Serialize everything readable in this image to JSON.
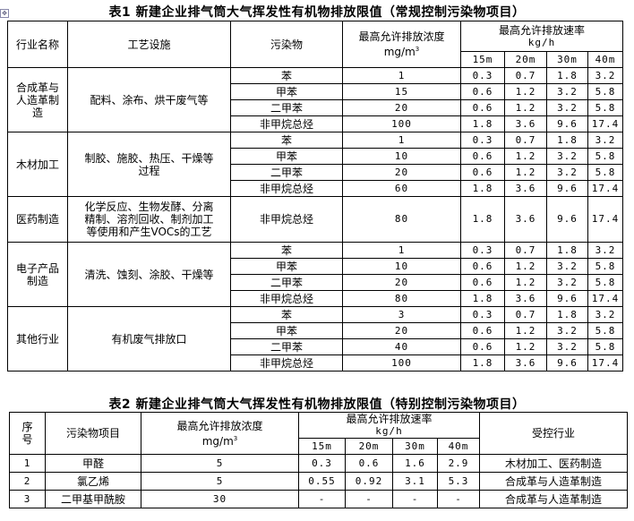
{
  "table1": {
    "title": "表1 新建企业排气筒大气挥发性有机物排放限值（常规控制污染物项目）",
    "headers": {
      "industry": "行业名称",
      "process": "工艺设施",
      "pollutant": "污染物",
      "conc": "最高允许排放浓度",
      "conc_unit": "mg/m",
      "conc_sup": "3",
      "rate": "最高允许排放速率",
      "rate_unit": "kg/h",
      "heights": [
        "15m",
        "20m",
        "30m",
        "40m"
      ]
    },
    "groups": [
      {
        "industry": "合成革与人造革制造",
        "process": "配料、涂布、烘干废气等",
        "rows": [
          {
            "pollutant": "苯",
            "conc": "1",
            "rates": [
              "0.3",
              "0.7",
              "1.8",
              "3.2"
            ]
          },
          {
            "pollutant": "甲苯",
            "conc": "15",
            "rates": [
              "0.6",
              "1.2",
              "3.2",
              "5.8"
            ]
          },
          {
            "pollutant": "二甲苯",
            "conc": "20",
            "rates": [
              "0.6",
              "1.2",
              "3.2",
              "5.8"
            ]
          },
          {
            "pollutant": "非甲烷总烃",
            "conc": "100",
            "rates": [
              "1.8",
              "3.6",
              "9.6",
              "17.4"
            ]
          }
        ]
      },
      {
        "industry": "木材加工",
        "process": "制胶、施胶、热压、干燥等过程",
        "rows": [
          {
            "pollutant": "苯",
            "conc": "1",
            "rates": [
              "0.3",
              "0.7",
              "1.8",
              "3.2"
            ]
          },
          {
            "pollutant": "甲苯",
            "conc": "10",
            "rates": [
              "0.6",
              "1.2",
              "3.2",
              "5.8"
            ]
          },
          {
            "pollutant": "二甲苯",
            "conc": "20",
            "rates": [
              "0.6",
              "1.2",
              "3.2",
              "5.8"
            ]
          },
          {
            "pollutant": "非甲烷总烃",
            "conc": "60",
            "rates": [
              "1.8",
              "3.6",
              "9.6",
              "17.4"
            ]
          }
        ]
      },
      {
        "industry": "医药制造",
        "process": "化学反应、生物发酵、分离精制、溶剂回收、制剂加工等使用和产生VOCs的工艺",
        "rows": [
          {
            "pollutant": "非甲烷总烃",
            "conc": "80",
            "rates": [
              "1.8",
              "3.6",
              "9.6",
              "17.4"
            ]
          }
        ]
      },
      {
        "industry": "电子产品制造",
        "process": "清洗、蚀刻、涂胶、干燥等",
        "rows": [
          {
            "pollutant": "苯",
            "conc": "1",
            "rates": [
              "0.3",
              "0.7",
              "1.8",
              "3.2"
            ]
          },
          {
            "pollutant": "甲苯",
            "conc": "10",
            "rates": [
              "0.6",
              "1.2",
              "3.2",
              "5.8"
            ]
          },
          {
            "pollutant": "二甲苯",
            "conc": "20",
            "rates": [
              "0.6",
              "1.2",
              "3.2",
              "5.8"
            ]
          },
          {
            "pollutant": "非甲烷总烃",
            "conc": "80",
            "rates": [
              "1.8",
              "3.6",
              "9.6",
              "17.4"
            ]
          }
        ]
      },
      {
        "industry": "其他行业",
        "process": "有机废气排放口",
        "rows": [
          {
            "pollutant": "苯",
            "conc": "3",
            "rates": [
              "0.3",
              "0.7",
              "1.8",
              "3.2"
            ]
          },
          {
            "pollutant": "甲苯",
            "conc": "20",
            "rates": [
              "0.6",
              "1.2",
              "3.2",
              "5.8"
            ]
          },
          {
            "pollutant": "二甲苯",
            "conc": "40",
            "rates": [
              "0.6",
              "1.2",
              "3.2",
              "5.8"
            ]
          },
          {
            "pollutant": "非甲烷总烃",
            "conc": "100",
            "rates": [
              "1.8",
              "3.6",
              "9.6",
              "17.4"
            ]
          }
        ]
      }
    ]
  },
  "table2": {
    "title": "表2 新建企业排气筒大气挥发性有机物排放限值（特别控制污染物项目）",
    "headers": {
      "no": "序号",
      "pollutant": "污染物项目",
      "conc": "最高允许排放浓度",
      "conc_unit": "mg/m",
      "conc_sup": "3",
      "rate": "最高允许排放速率",
      "rate_unit": "kg/h",
      "heights": [
        "15m",
        "20m",
        "30m",
        "40m"
      ],
      "industry": "受控行业"
    },
    "rows": [
      {
        "no": "1",
        "pollutant": "甲醛",
        "conc": "5",
        "rates": [
          "0.3",
          "0.6",
          "1.6",
          "2.9"
        ],
        "industry": "木材加工、医药制造"
      },
      {
        "no": "2",
        "pollutant": "氯乙烯",
        "conc": "5",
        "rates": [
          "0.55",
          "0.92",
          "3.1",
          "5.3"
        ],
        "industry": "合成革与人造革制造"
      },
      {
        "no": "3",
        "pollutant": "二甲基甲酰胺",
        "conc": "30",
        "rates": [
          "-",
          "-",
          "-",
          "-"
        ],
        "industry": "合成革与人造革制造"
      }
    ]
  }
}
